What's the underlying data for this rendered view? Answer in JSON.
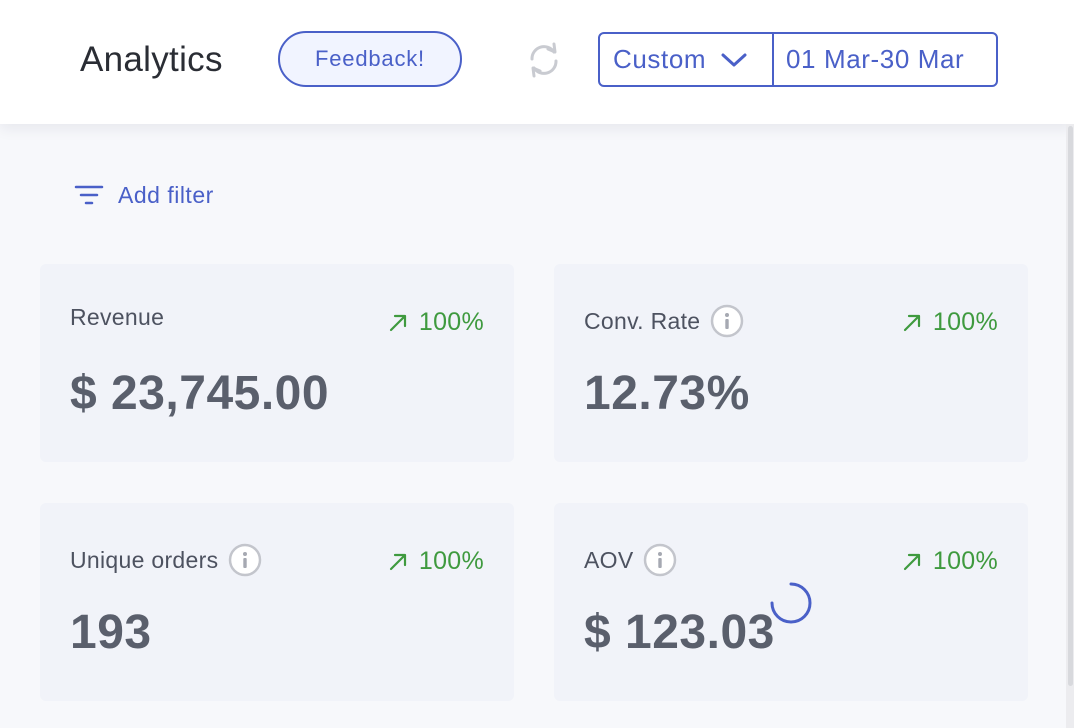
{
  "header": {
    "title": "Analytics",
    "feedback_label": "Feedback!",
    "refresh_icon": "refresh-icon",
    "date_range": {
      "preset": "Custom",
      "range": "01 Mar-30 Mar"
    }
  },
  "filters": {
    "add_filter_label": "Add filter",
    "icon": "filter-icon"
  },
  "metrics": [
    {
      "label": "Revenue",
      "value": "$ 23,745.00",
      "change": "100%",
      "has_info": false
    },
    {
      "label": "Conv. Rate",
      "value": "12.73%",
      "change": "100%",
      "has_info": true
    },
    {
      "label": "Unique orders",
      "value": "193",
      "change": "100%",
      "has_info": true
    },
    {
      "label": "AOV",
      "value": "$ 123.03",
      "change": "100%",
      "has_info": true
    }
  ],
  "colors": {
    "accent": "#4a60c8",
    "positive": "#3f9a3f",
    "card_bg": "#f1f3f9",
    "page_bg": "#f7f8fb"
  }
}
